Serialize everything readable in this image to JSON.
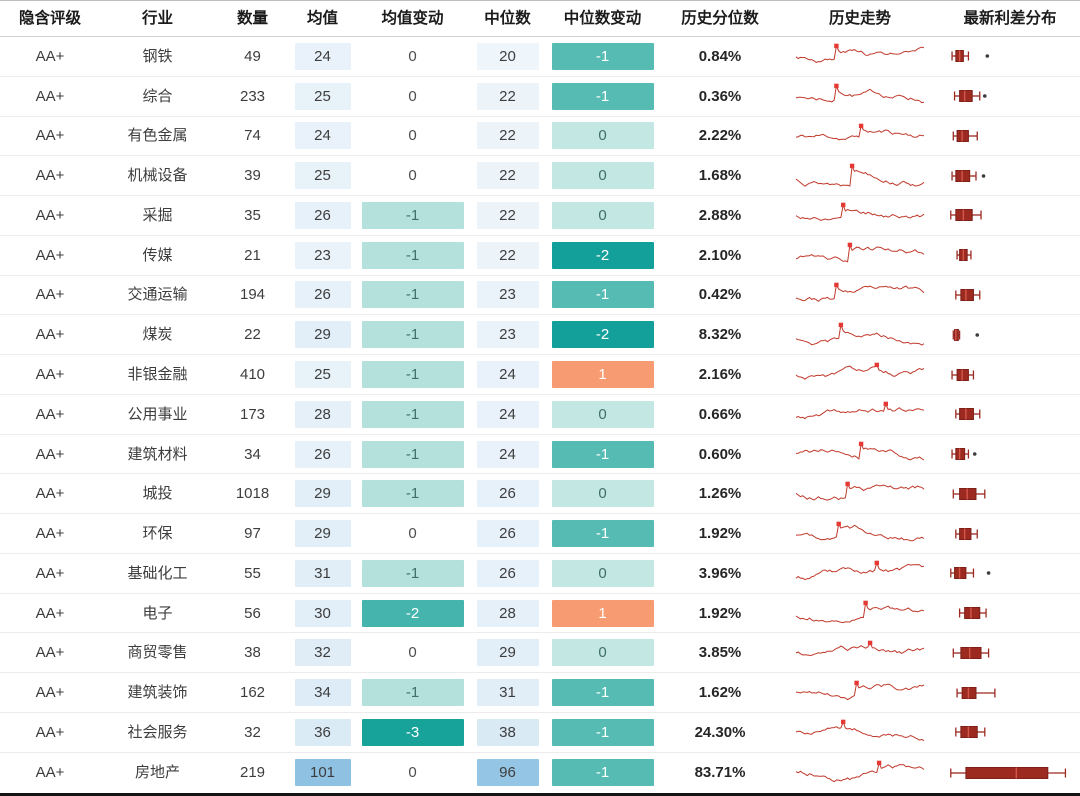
{
  "chart_data": {
    "type": "table",
    "columns": [
      "隐含评级",
      "行业",
      "数量",
      "均值",
      "均值变动",
      "中位数",
      "中位数变动",
      "历史分位数",
      "历史走势",
      "最新利差分布"
    ],
    "rows": [
      {
        "rating": "AA+",
        "industry": "钢铁",
        "count": 49,
        "mean": 24,
        "mean_chg": 0,
        "median": 20,
        "median_chg": -1,
        "percentile": "0.84%",
        "spark_seed": 3,
        "box": {
          "lo": 0.04,
          "q1": 0.07,
          "med": 0.1,
          "q3": 0.13,
          "hi": 0.17,
          "out": [
            0.32
          ]
        }
      },
      {
        "rating": "AA+",
        "industry": "综合",
        "count": 233,
        "mean": 25,
        "mean_chg": 0,
        "median": 22,
        "median_chg": -1,
        "percentile": "0.36%",
        "spark_seed": 7,
        "box": {
          "lo": 0.06,
          "q1": 0.1,
          "med": 0.14,
          "q3": 0.2,
          "hi": 0.26,
          "out": [
            0.3
          ]
        }
      },
      {
        "rating": "AA+",
        "industry": "有色金属",
        "count": 74,
        "mean": 24,
        "mean_chg": 0,
        "median": 22,
        "median_chg": 0,
        "percentile": "2.22%",
        "spark_seed": 11,
        "box": {
          "lo": 0.05,
          "q1": 0.08,
          "med": 0.12,
          "q3": 0.17,
          "hi": 0.24,
          "out": []
        }
      },
      {
        "rating": "AA+",
        "industry": "机械设备",
        "count": 39,
        "mean": 25,
        "mean_chg": 0,
        "median": 22,
        "median_chg": 0,
        "percentile": "1.68%",
        "spark_seed": 13,
        "box": {
          "lo": 0.04,
          "q1": 0.07,
          "med": 0.12,
          "q3": 0.18,
          "hi": 0.23,
          "out": [
            0.29
          ]
        }
      },
      {
        "rating": "AA+",
        "industry": "采掘",
        "count": 35,
        "mean": 26,
        "mean_chg": -1,
        "median": 22,
        "median_chg": 0,
        "percentile": "2.88%",
        "spark_seed": 17,
        "box": {
          "lo": 0.03,
          "q1": 0.07,
          "med": 0.13,
          "q3": 0.2,
          "hi": 0.27,
          "out": []
        }
      },
      {
        "rating": "AA+",
        "industry": "传媒",
        "count": 21,
        "mean": 23,
        "mean_chg": -1,
        "median": 22,
        "median_chg": -2,
        "percentile": "2.10%",
        "spark_seed": 19,
        "box": {
          "lo": 0.08,
          "q1": 0.1,
          "med": 0.13,
          "q3": 0.16,
          "hi": 0.19,
          "out": []
        }
      },
      {
        "rating": "AA+",
        "industry": "交通运输",
        "count": 194,
        "mean": 26,
        "mean_chg": -1,
        "median": 23,
        "median_chg": -1,
        "percentile": "0.42%",
        "spark_seed": 23,
        "box": {
          "lo": 0.07,
          "q1": 0.11,
          "med": 0.15,
          "q3": 0.21,
          "hi": 0.26,
          "out": []
        }
      },
      {
        "rating": "AA+",
        "industry": "煤炭",
        "count": 22,
        "mean": 29,
        "mean_chg": -1,
        "median": 23,
        "median_chg": -2,
        "percentile": "8.32%",
        "spark_seed": 29,
        "box": {
          "lo": 0.05,
          "q1": 0.06,
          "med": 0.07,
          "q3": 0.09,
          "hi": 0.1,
          "out": [
            0.24
          ]
        }
      },
      {
        "rating": "AA+",
        "industry": "非银金融",
        "count": 410,
        "mean": 25,
        "mean_chg": -1,
        "median": 24,
        "median_chg": 1,
        "percentile": "2.16%",
        "spark_seed": 31,
        "box": {
          "lo": 0.04,
          "q1": 0.08,
          "med": 0.12,
          "q3": 0.17,
          "hi": 0.21,
          "out": []
        }
      },
      {
        "rating": "AA+",
        "industry": "公用事业",
        "count": 173,
        "mean": 28,
        "mean_chg": -1,
        "median": 24,
        "median_chg": 0,
        "percentile": "0.66%",
        "spark_seed": 37,
        "box": {
          "lo": 0.07,
          "q1": 0.1,
          "med": 0.15,
          "q3": 0.21,
          "hi": 0.26,
          "out": []
        }
      },
      {
        "rating": "AA+",
        "industry": "建筑材料",
        "count": 34,
        "mean": 26,
        "mean_chg": -1,
        "median": 24,
        "median_chg": -1,
        "percentile": "0.60%",
        "spark_seed": 41,
        "box": {
          "lo": 0.04,
          "q1": 0.07,
          "med": 0.1,
          "q3": 0.14,
          "hi": 0.17,
          "out": [
            0.22
          ]
        }
      },
      {
        "rating": "AA+",
        "industry": "城投",
        "count": 1018,
        "mean": 29,
        "mean_chg": -1,
        "median": 26,
        "median_chg": 0,
        "percentile": "1.26%",
        "spark_seed": 43,
        "box": {
          "lo": 0.05,
          "q1": 0.1,
          "med": 0.16,
          "q3": 0.23,
          "hi": 0.3,
          "out": []
        }
      },
      {
        "rating": "AA+",
        "industry": "环保",
        "count": 97,
        "mean": 29,
        "mean_chg": 0,
        "median": 26,
        "median_chg": -1,
        "percentile": "1.92%",
        "spark_seed": 47,
        "box": {
          "lo": 0.07,
          "q1": 0.1,
          "med": 0.14,
          "q3": 0.19,
          "hi": 0.24,
          "out": []
        }
      },
      {
        "rating": "AA+",
        "industry": "基础化工",
        "count": 55,
        "mean": 31,
        "mean_chg": -1,
        "median": 26,
        "median_chg": 0,
        "percentile": "3.96%",
        "spark_seed": 53,
        "box": {
          "lo": 0.03,
          "q1": 0.06,
          "med": 0.1,
          "q3": 0.15,
          "hi": 0.21,
          "out": [
            0.33
          ]
        }
      },
      {
        "rating": "AA+",
        "industry": "电子",
        "count": 56,
        "mean": 30,
        "mean_chg": -2,
        "median": 28,
        "median_chg": 1,
        "percentile": "1.92%",
        "spark_seed": 59,
        "box": {
          "lo": 0.1,
          "q1": 0.14,
          "med": 0.19,
          "q3": 0.26,
          "hi": 0.31,
          "out": []
        }
      },
      {
        "rating": "AA+",
        "industry": "商贸零售",
        "count": 38,
        "mean": 32,
        "mean_chg": 0,
        "median": 29,
        "median_chg": 0,
        "percentile": "3.85%",
        "spark_seed": 61,
        "box": {
          "lo": 0.05,
          "q1": 0.11,
          "med": 0.18,
          "q3": 0.27,
          "hi": 0.33,
          "out": []
        }
      },
      {
        "rating": "AA+",
        "industry": "建筑装饰",
        "count": 162,
        "mean": 34,
        "mean_chg": -1,
        "median": 31,
        "median_chg": -1,
        "percentile": "1.62%",
        "spark_seed": 67,
        "box": {
          "lo": 0.08,
          "q1": 0.12,
          "med": 0.17,
          "q3": 0.23,
          "hi": 0.38,
          "out": []
        }
      },
      {
        "rating": "AA+",
        "industry": "社会服务",
        "count": 32,
        "mean": 36,
        "mean_chg": -3,
        "median": 38,
        "median_chg": -1,
        "percentile": "24.30%",
        "spark_seed": 71,
        "box": {
          "lo": 0.07,
          "q1": 0.11,
          "med": 0.17,
          "q3": 0.24,
          "hi": 0.3,
          "out": []
        }
      },
      {
        "rating": "AA+",
        "industry": "房地产",
        "count": 219,
        "mean": 101,
        "mean_chg": 0,
        "median": 96,
        "median_chg": -1,
        "percentile": "83.71%",
        "spark_seed": 73,
        "box": {
          "lo": 0.03,
          "q1": 0.15,
          "med": 0.55,
          "q3": 0.8,
          "hi": 0.94,
          "out": []
        }
      }
    ],
    "value_scale": {
      "min": 20,
      "max": 101
    }
  },
  "styles": {
    "blue_from": "#eef5fb",
    "blue_to": "#8fc2e2",
    "mean_chg_colors": {
      "0": [
        "#ffffff",
        "#4d4d4d"
      ],
      "-1": [
        "#b5e1dc",
        "#3f6f6a"
      ],
      "-2": [
        "#45b4ac",
        "#ffffff"
      ],
      "-3": [
        "#17a29a",
        "#ffffff"
      ]
    },
    "median_chg_colors": {
      "1": [
        "#f79b72",
        "#ffffff"
      ],
      "0": [
        "#c3e7e3",
        "#3f6f6a"
      ],
      "-1": [
        "#56bbb2",
        "#ffffff"
      ],
      "-2": [
        "#14a09a",
        "#ffffff"
      ]
    },
    "spark_color": "#c0392b",
    "marker_color": "#e53935",
    "box_color": "#9c2a21",
    "box_edge": "#7e1f18",
    "box_median_color": "#d4574a",
    "outlier_color": "#3c3c3c"
  }
}
